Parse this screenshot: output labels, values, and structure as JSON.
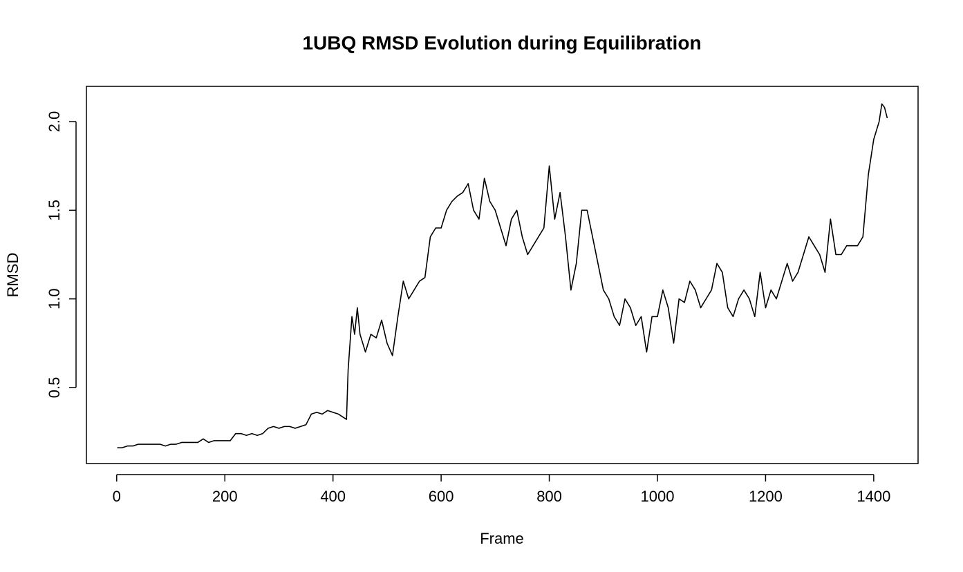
{
  "chart_data": {
    "type": "line",
    "title": "1UBQ RMSD Evolution during Equilibration",
    "xlabel": "Frame",
    "ylabel": "RMSD",
    "color": "#000000",
    "x": [
      1,
      10,
      20,
      30,
      40,
      50,
      60,
      70,
      80,
      90,
      100,
      110,
      120,
      130,
      140,
      150,
      160,
      170,
      180,
      190,
      200,
      210,
      220,
      230,
      240,
      250,
      260,
      270,
      280,
      290,
      300,
      310,
      320,
      330,
      340,
      350,
      360,
      370,
      380,
      390,
      400,
      410,
      420,
      425,
      428,
      435,
      440,
      445,
      450,
      460,
      470,
      480,
      490,
      500,
      510,
      520,
      530,
      540,
      550,
      560,
      570,
      580,
      590,
      600,
      610,
      620,
      630,
      640,
      650,
      660,
      670,
      680,
      690,
      700,
      710,
      720,
      730,
      740,
      750,
      760,
      770,
      780,
      790,
      800,
      810,
      820,
      830,
      840,
      850,
      860,
      870,
      880,
      890,
      900,
      910,
      920,
      930,
      940,
      950,
      960,
      970,
      980,
      990,
      1000,
      1010,
      1020,
      1030,
      1040,
      1050,
      1060,
      1070,
      1080,
      1090,
      1100,
      1110,
      1120,
      1130,
      1140,
      1150,
      1160,
      1170,
      1180,
      1190,
      1200,
      1210,
      1220,
      1230,
      1240,
      1250,
      1260,
      1270,
      1280,
      1290,
      1300,
      1310,
      1320,
      1330,
      1340,
      1350,
      1360,
      1370,
      1380,
      1390,
      1400,
      1410,
      1415,
      1420,
      1425
    ],
    "values": [
      0.16,
      0.16,
      0.17,
      0.17,
      0.18,
      0.18,
      0.18,
      0.18,
      0.18,
      0.17,
      0.18,
      0.18,
      0.19,
      0.19,
      0.19,
      0.19,
      0.21,
      0.19,
      0.2,
      0.2,
      0.2,
      0.2,
      0.24,
      0.24,
      0.23,
      0.24,
      0.23,
      0.24,
      0.27,
      0.28,
      0.27,
      0.28,
      0.28,
      0.27,
      0.28,
      0.29,
      0.35,
      0.36,
      0.35,
      0.37,
      0.36,
      0.35,
      0.33,
      0.32,
      0.6,
      0.9,
      0.8,
      0.95,
      0.8,
      0.7,
      0.8,
      0.78,
      0.88,
      0.75,
      0.68,
      0.9,
      1.1,
      1.0,
      1.05,
      1.1,
      1.12,
      1.35,
      1.4,
      1.4,
      1.5,
      1.55,
      1.58,
      1.6,
      1.65,
      1.5,
      1.45,
      1.68,
      1.55,
      1.5,
      1.4,
      1.3,
      1.45,
      1.5,
      1.35,
      1.25,
      1.3,
      1.35,
      1.4,
      1.75,
      1.45,
      1.6,
      1.35,
      1.05,
      1.2,
      1.5,
      1.5,
      1.35,
      1.2,
      1.05,
      1.0,
      0.9,
      0.85,
      1.0,
      0.95,
      0.85,
      0.9,
      0.7,
      0.9,
      0.9,
      1.05,
      0.95,
      0.75,
      1.0,
      0.98,
      1.1,
      1.05,
      0.95,
      1.0,
      1.05,
      1.2,
      1.15,
      0.95,
      0.9,
      1.0,
      1.05,
      1.0,
      0.9,
      1.15,
      0.95,
      1.05,
      1.0,
      1.1,
      1.2,
      1.1,
      1.15,
      1.25,
      1.35,
      1.3,
      1.25,
      1.15,
      1.45,
      1.25,
      1.25,
      1.3,
      1.3,
      1.3,
      1.35,
      1.7,
      1.9,
      2.0,
      2.1,
      2.08,
      2.02
    ],
    "xlim": [
      -56,
      1482
    ],
    "ylim": [
      0.071,
      2.199
    ],
    "xticks": [
      0,
      200,
      400,
      600,
      800,
      1000,
      1200,
      1400
    ],
    "yticks": [
      {
        "value": 0.5,
        "label": "0.5"
      },
      {
        "value": 1,
        "label": "1.0"
      },
      {
        "value": 1.5,
        "label": "1.5"
      },
      {
        "value": 2,
        "label": "2.0"
      }
    ]
  }
}
